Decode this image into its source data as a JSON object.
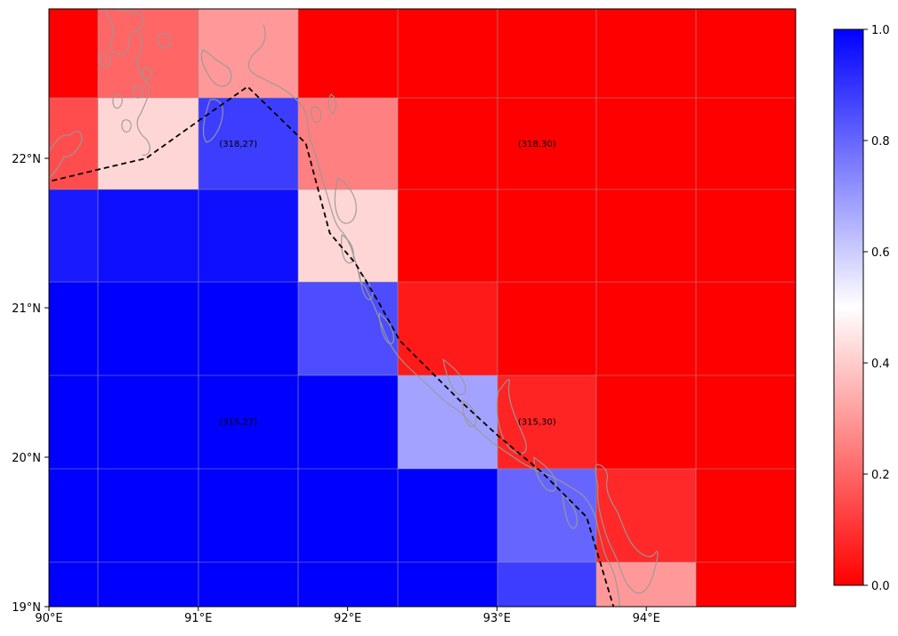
{
  "map": {
    "x_ticks": [
      {
        "lon": 90,
        "label": "90°E"
      },
      {
        "lon": 91,
        "label": "91°E"
      },
      {
        "lon": 92,
        "label": "92°E"
      },
      {
        "lon": 93,
        "label": "93°E"
      },
      {
        "lon": 94,
        "label": "94°E"
      }
    ],
    "y_ticks": [
      {
        "lat": 22,
        "label": "22°N"
      },
      {
        "lat": 21,
        "label": "21°N"
      },
      {
        "lat": 20,
        "label": "20°N"
      },
      {
        "lat": 19,
        "label": "19°N"
      }
    ],
    "lon_range": [
      90,
      95
    ],
    "lat_range": [
      19,
      23
    ],
    "colors": {
      "low": "#ff0000",
      "mid": "#ffffff",
      "high": "#0000ff",
      "grid": "#999999",
      "coast": "#999999",
      "track": "#000000"
    },
    "grid_values": [
      [
        0.0,
        0.2,
        0.3,
        0.0,
        0.0,
        0.0,
        0.0,
        0.0
      ],
      [
        0.15,
        0.42,
        0.88,
        0.25,
        0.0,
        0.0,
        0.0,
        0.0
      ],
      [
        0.95,
        0.97,
        0.97,
        0.42,
        0.0,
        0.0,
        0.0,
        0.0
      ],
      [
        1.0,
        1.0,
        1.0,
        0.85,
        0.05,
        0.0,
        0.0,
        0.0
      ],
      [
        1.0,
        1.0,
        1.0,
        1.0,
        0.68,
        0.07,
        0.0,
        0.0
      ],
      [
        1.0,
        1.0,
        1.0,
        1.0,
        1.0,
        0.8,
        0.08,
        0.0
      ],
      [
        1.0,
        1.0,
        1.0,
        1.0,
        1.0,
        0.88,
        0.3,
        0.0
      ]
    ],
    "cell_labels": [
      {
        "text": "(318,27)",
        "lon": 91.25,
        "lat": 22.1
      },
      {
        "text": "(318,30)",
        "lon": 93.25,
        "lat": 22.1
      },
      {
        "text": "(315,27)",
        "lon": 91.25,
        "lat": 20.24
      },
      {
        "text": "(315,30)",
        "lon": 93.25,
        "lat": 20.24
      }
    ],
    "track": [
      {
        "lon": 90.02,
        "lat": 21.85
      },
      {
        "lon": 90.35,
        "lat": 21.93
      },
      {
        "lon": 90.65,
        "lat": 22.0
      },
      {
        "lon": 91.0,
        "lat": 22.25
      },
      {
        "lon": 91.33,
        "lat": 22.48
      },
      {
        "lon": 91.72,
        "lat": 22.1
      },
      {
        "lon": 91.88,
        "lat": 21.5
      },
      {
        "lon": 92.05,
        "lat": 21.3
      },
      {
        "lon": 92.2,
        "lat": 21.05
      },
      {
        "lon": 92.35,
        "lat": 20.78
      },
      {
        "lon": 92.55,
        "lat": 20.58
      },
      {
        "lon": 92.75,
        "lat": 20.38
      },
      {
        "lon": 93.0,
        "lat": 20.15
      },
      {
        "lon": 93.3,
        "lat": 19.9
      },
      {
        "lon": 93.6,
        "lat": 19.6
      },
      {
        "lon": 93.78,
        "lat": 19.0
      }
    ],
    "colorbar": {
      "ticks": [
        {
          "value": 0.0,
          "label": "0.0"
        },
        {
          "value": 0.2,
          "label": "0.2"
        },
        {
          "value": 0.4,
          "label": "0.4"
        },
        {
          "value": 0.6,
          "label": "0.6"
        },
        {
          "value": 0.8,
          "label": "0.8"
        },
        {
          "value": 1.0,
          "label": "1.0"
        }
      ]
    }
  }
}
